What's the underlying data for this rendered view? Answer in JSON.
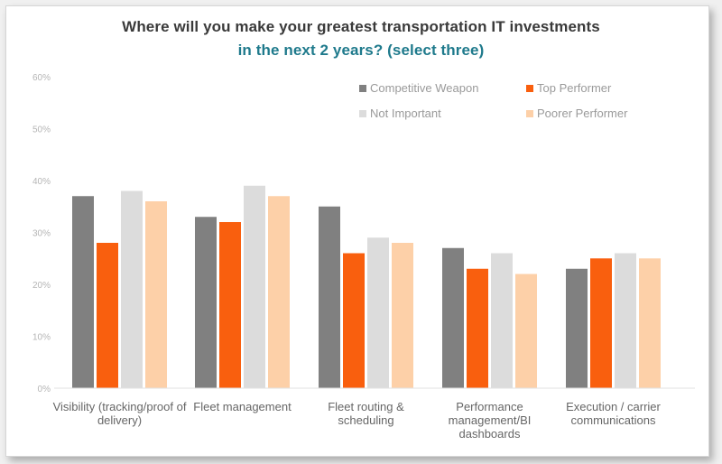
{
  "chart_data": {
    "type": "bar",
    "title_line1": "Where will you make your greatest transportation IT investments",
    "title_line2": "in the next 2 years? (select three)",
    "categories": [
      "Visibility (tracking/proof of delivery)",
      "Fleet management",
      "Fleet routing & scheduling",
      "Performance management/BI dashboards",
      "Execution / carrier communications"
    ],
    "series": [
      {
        "name": "Competitive Weapon",
        "color": "#808080",
        "values": [
          37,
          33,
          35,
          27,
          23
        ]
      },
      {
        "name": "Top Performer",
        "color": "#f95f0e",
        "values": [
          28,
          32,
          26,
          23,
          25
        ]
      },
      {
        "name": "Not Important",
        "color": "#dcdcdc",
        "values": [
          38,
          39,
          29,
          26,
          26
        ]
      },
      {
        "name": "Poorer Performer",
        "color": "#fdd0a8",
        "values": [
          36,
          37,
          28,
          22,
          25
        ]
      }
    ],
    "y_tick_labels": [
      "0%",
      "10%",
      "20%",
      "30%",
      "40%",
      "50%",
      "60%"
    ],
    "ylim": [
      0,
      60
    ],
    "legend_position": "top-right",
    "grid": false
  }
}
